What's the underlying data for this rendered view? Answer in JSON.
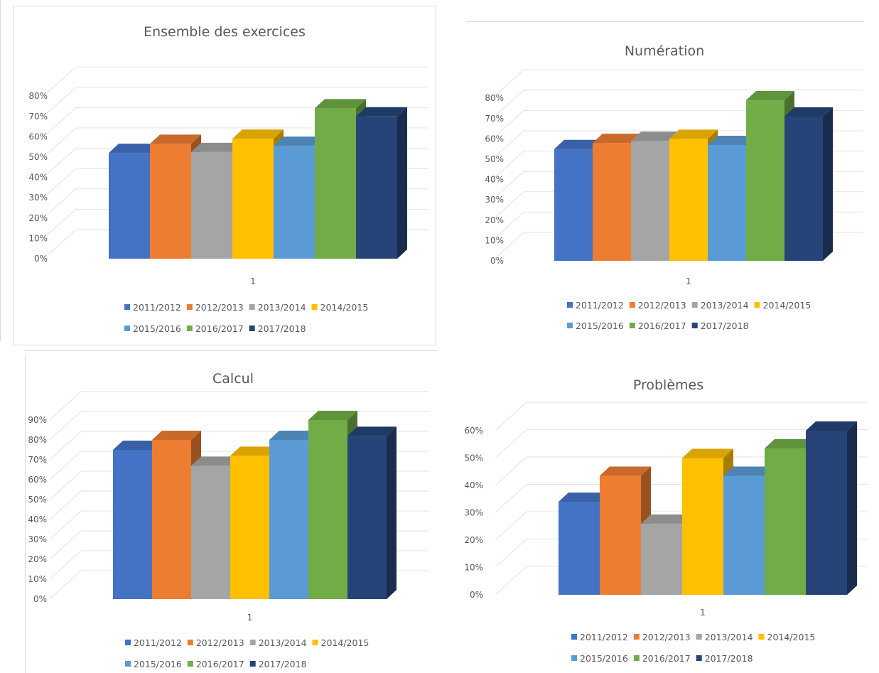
{
  "series_colors": {
    "2011/2012": "#4472c4",
    "2012/2013": "#ed7d31",
    "2013/2014": "#a5a5a5",
    "2014/2015": "#ffc000",
    "2015/2016": "#5b9bd5",
    "2016/2017": "#70ad47",
    "2017/2018": "#264478"
  },
  "chart_data": [
    {
      "type": "bar",
      "title": "Ensemble des exercices",
      "categories": [
        "1"
      ],
      "series": [
        {
          "name": "2011/2012",
          "values": [
            0.52
          ]
        },
        {
          "name": "2012/2013",
          "values": [
            0.565
          ]
        },
        {
          "name": "2013/2014",
          "values": [
            0.525
          ]
        },
        {
          "name": "2014/2015",
          "values": [
            0.59
          ]
        },
        {
          "name": "2015/2016",
          "values": [
            0.555
          ]
        },
        {
          "name": "2016/2017",
          "values": [
            0.74
          ]
        },
        {
          "name": "2017/2018",
          "values": [
            0.7
          ]
        }
      ],
      "ylim": [
        0,
        0.8
      ],
      "yticks": [
        "0%",
        "10%",
        "20%",
        "30%",
        "40%",
        "50%",
        "60%",
        "70%",
        "80%"
      ],
      "legend": "bottom",
      "grid": true
    },
    {
      "type": "bar",
      "title": "Numération",
      "categories": [
        "1"
      ],
      "series": [
        {
          "name": "2011/2012",
          "values": [
            0.55
          ]
        },
        {
          "name": "2012/2013",
          "values": [
            0.58
          ]
        },
        {
          "name": "2013/2014",
          "values": [
            0.59
          ]
        },
        {
          "name": "2014/2015",
          "values": [
            0.6
          ]
        },
        {
          "name": "2015/2016",
          "values": [
            0.57
          ]
        },
        {
          "name": "2016/2017",
          "values": [
            0.79
          ]
        },
        {
          "name": "2017/2018",
          "values": [
            0.71
          ]
        }
      ],
      "ylim": [
        0,
        0.8
      ],
      "yticks": [
        "0%",
        "10%",
        "20%",
        "30%",
        "40%",
        "50%",
        "60%",
        "70%",
        "80%"
      ],
      "legend": "bottom",
      "grid": true
    },
    {
      "type": "bar",
      "title": "Calcul",
      "categories": [
        "1"
      ],
      "series": [
        {
          "name": "2011/2012",
          "values": [
            0.75
          ]
        },
        {
          "name": "2012/2013",
          "values": [
            0.8
          ]
        },
        {
          "name": "2013/2014",
          "values": [
            0.67
          ]
        },
        {
          "name": "2014/2015",
          "values": [
            0.72
          ]
        },
        {
          "name": "2015/2016",
          "values": [
            0.8
          ]
        },
        {
          "name": "2016/2017",
          "values": [
            0.9
          ]
        },
        {
          "name": "2017/2018",
          "values": [
            0.82
          ]
        }
      ],
      "ylim": [
        0,
        0.9
      ],
      "yticks": [
        "0%",
        "10%",
        "20%",
        "30%",
        "40%",
        "50%",
        "60%",
        "70%",
        "80%",
        "90%"
      ],
      "legend": "bottom",
      "grid": true
    },
    {
      "type": "bar",
      "title": "Problèmes",
      "categories": [
        "1"
      ],
      "series": [
        {
          "name": "2011/2012",
          "values": [
            0.34
          ]
        },
        {
          "name": "2012/2013",
          "values": [
            0.435
          ]
        },
        {
          "name": "2013/2014",
          "values": [
            0.26
          ]
        },
        {
          "name": "2014/2015",
          "values": [
            0.5
          ]
        },
        {
          "name": "2015/2016",
          "values": [
            0.435
          ]
        },
        {
          "name": "2016/2017",
          "values": [
            0.535
          ]
        },
        {
          "name": "2017/2018",
          "values": [
            0.6
          ]
        }
      ],
      "ylim": [
        0,
        0.6
      ],
      "yticks": [
        "0%",
        "10%",
        "20%",
        "30%",
        "40%",
        "50%",
        "60%"
      ],
      "legend": "bottom",
      "grid": true
    }
  ]
}
